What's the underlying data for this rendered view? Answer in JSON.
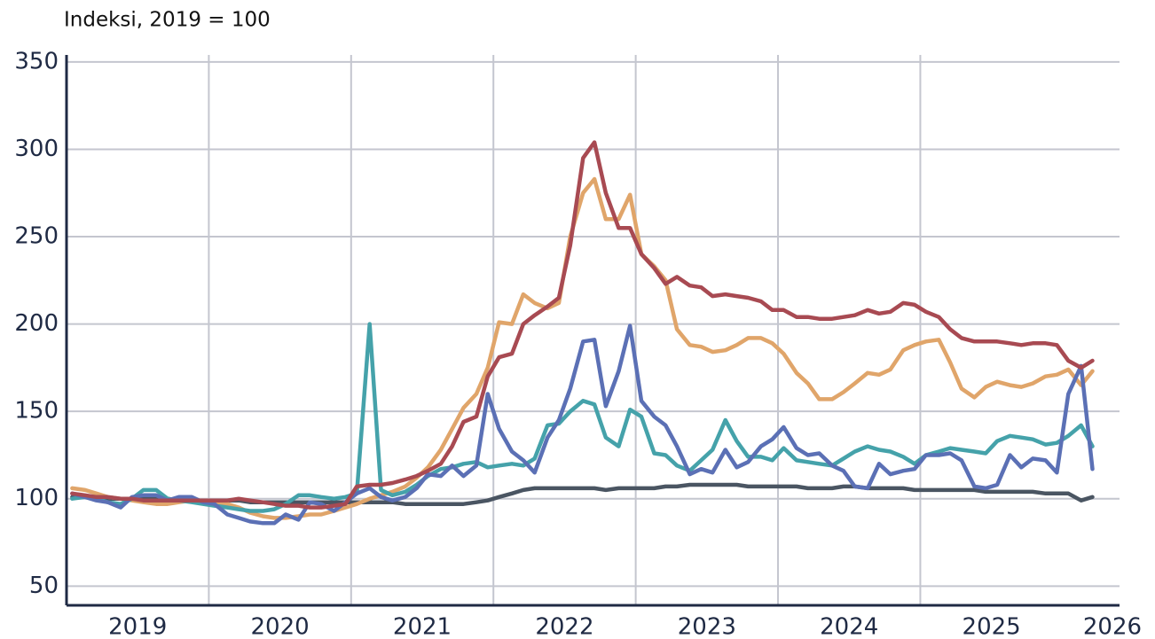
{
  "chart_data": {
    "type": "line",
    "title": "Indeksi, 2019 = 100",
    "x": [
      2019.04,
      2019.13,
      2019.21,
      2019.29,
      2019.38,
      2019.46,
      2019.54,
      2019.63,
      2019.71,
      2019.79,
      2019.88,
      2019.96,
      2020.04,
      2020.13,
      2020.21,
      2020.29,
      2020.38,
      2020.46,
      2020.54,
      2020.63,
      2020.71,
      2020.79,
      2020.88,
      2020.96,
      2021.04,
      2021.13,
      2021.21,
      2021.29,
      2021.38,
      2021.46,
      2021.54,
      2021.63,
      2021.71,
      2021.79,
      2021.88,
      2021.96,
      2022.04,
      2022.13,
      2022.21,
      2022.29,
      2022.38,
      2022.46,
      2022.54,
      2022.63,
      2022.71,
      2022.79,
      2022.88,
      2022.96,
      2023.04,
      2023.13,
      2023.21,
      2023.29,
      2023.38,
      2023.46,
      2023.54,
      2023.63,
      2023.71,
      2023.79,
      2023.88,
      2023.96,
      2024.04,
      2024.13,
      2024.21,
      2024.29,
      2024.38,
      2024.46,
      2024.54,
      2024.63,
      2024.71,
      2024.79,
      2024.88,
      2024.96,
      2025.04,
      2025.13,
      2025.21,
      2025.29,
      2025.38,
      2025.46,
      2025.54,
      2025.63,
      2025.71,
      2025.79,
      2025.88,
      2025.96,
      2026.04,
      2026.13,
      2026.21
    ],
    "series": [
      {
        "color": "#4a5562",
        "values": [
          101,
          101,
          101,
          100,
          100,
          100,
          100,
          100,
          100,
          99,
          99,
          99,
          99,
          99,
          99,
          98,
          98,
          98,
          98,
          98,
          98,
          98,
          98,
          98,
          98,
          98,
          98,
          98,
          97,
          97,
          97,
          97,
          97,
          97,
          98,
          99,
          101,
          103,
          105,
          106,
          106,
          106,
          106,
          106,
          106,
          105,
          106,
          106,
          106,
          106,
          107,
          107,
          108,
          108,
          108,
          108,
          108,
          107,
          107,
          107,
          107,
          107,
          106,
          106,
          106,
          107,
          107,
          106,
          106,
          106,
          106,
          105,
          105,
          105,
          105,
          105,
          105,
          104,
          104,
          104,
          104,
          104,
          103,
          103,
          103,
          99,
          101
        ]
      },
      {
        "color": "#e0a56a",
        "values": [
          106,
          105,
          103,
          101,
          100,
          99,
          98,
          97,
          97,
          98,
          99,
          98,
          98,
          97,
          95,
          92,
          90,
          89,
          89,
          90,
          91,
          91,
          93,
          95,
          97,
          100,
          102,
          104,
          107,
          112,
          118,
          128,
          140,
          152,
          160,
          175,
          201,
          200,
          217,
          212,
          209,
          212,
          250,
          275,
          283,
          260,
          260,
          274,
          240,
          233,
          225,
          197,
          188,
          187,
          184,
          185,
          188,
          192,
          192,
          189,
          183,
          172,
          166,
          157,
          157,
          161,
          166,
          172,
          171,
          174,
          185,
          188,
          190,
          191,
          178,
          163,
          158,
          164,
          167,
          165,
          164,
          166,
          170,
          171,
          174,
          165,
          173
        ]
      },
      {
        "color": "#45a2aa",
        "values": [
          100,
          101,
          100,
          98,
          97,
          100,
          105,
          105,
          100,
          99,
          98,
          97,
          96,
          95,
          94,
          93,
          93,
          94,
          97,
          102,
          102,
          101,
          100,
          101,
          103,
          200,
          105,
          102,
          104,
          108,
          113,
          117,
          118,
          120,
          121,
          118,
          119,
          120,
          119,
          123,
          142,
          143,
          150,
          156,
          154,
          135,
          130,
          151,
          147,
          126,
          125,
          119,
          116,
          122,
          128,
          145,
          133,
          124,
          124,
          122,
          129,
          122,
          121,
          120,
          119,
          123,
          127,
          130,
          128,
          127,
          124,
          120,
          125,
          127,
          129,
          128,
          127,
          126,
          133,
          136,
          135,
          134,
          131,
          132,
          136,
          142,
          130
        ]
      },
      {
        "color": "#5b70b5",
        "values": [
          103,
          101,
          99,
          98,
          95,
          101,
          102,
          102,
          99,
          101,
          101,
          98,
          97,
          91,
          89,
          87,
          86,
          86,
          91,
          88,
          98,
          97,
          93,
          98,
          103,
          106,
          101,
          99,
          101,
          106,
          114,
          113,
          119,
          113,
          119,
          160,
          140,
          127,
          122,
          115,
          135,
          145,
          163,
          190,
          191,
          153,
          173,
          199,
          156,
          147,
          142,
          130,
          114,
          117,
          115,
          128,
          118,
          121,
          130,
          134,
          141,
          129,
          125,
          126,
          119,
          116,
          107,
          106,
          120,
          114,
          116,
          117,
          125,
          125,
          126,
          122,
          107,
          106,
          108,
          125,
          118,
          123,
          122,
          115,
          160,
          176,
          117
        ]
      },
      {
        "color": "#a84a52",
        "values": [
          103,
          102,
          101,
          101,
          100,
          100,
          99,
          99,
          99,
          99,
          99,
          99,
          99,
          99,
          100,
          99,
          98,
          97,
          96,
          96,
          95,
          95,
          96,
          97,
          107,
          108,
          108,
          109,
          111,
          113,
          116,
          120,
          130,
          144,
          147,
          170,
          181,
          183,
          200,
          205,
          210,
          215,
          245,
          295,
          304,
          275,
          255,
          255,
          240,
          232,
          223,
          227,
          222,
          221,
          216,
          217,
          216,
          215,
          213,
          208,
          208,
          204,
          204,
          203,
          203,
          204,
          205,
          208,
          206,
          207,
          212,
          211,
          207,
          204,
          197,
          192,
          190,
          190,
          190,
          189,
          188,
          189,
          189,
          188,
          179,
          175,
          179
        ]
      }
    ],
    "xlim": [
      2019,
      2026.4
    ],
    "xticks": [
      {
        "value": 2019.5,
        "label": "2019"
      },
      {
        "value": 2020.5,
        "label": "2020"
      },
      {
        "value": 2021.5,
        "label": "2021"
      },
      {
        "value": 2022.5,
        "label": "2022"
      },
      {
        "value": 2023.5,
        "label": "2023"
      },
      {
        "value": 2024.5,
        "label": "2024"
      },
      {
        "value": 2025.5,
        "label": "2025"
      },
      {
        "value": 2026.35,
        "label": "2026"
      }
    ],
    "xgrid": [
      2020,
      2021,
      2022,
      2023,
      2024,
      2025
    ],
    "ylim": [
      39,
      354
    ],
    "yticks": [
      50,
      100,
      150,
      200,
      250,
      300,
      350
    ],
    "grid": true
  }
}
